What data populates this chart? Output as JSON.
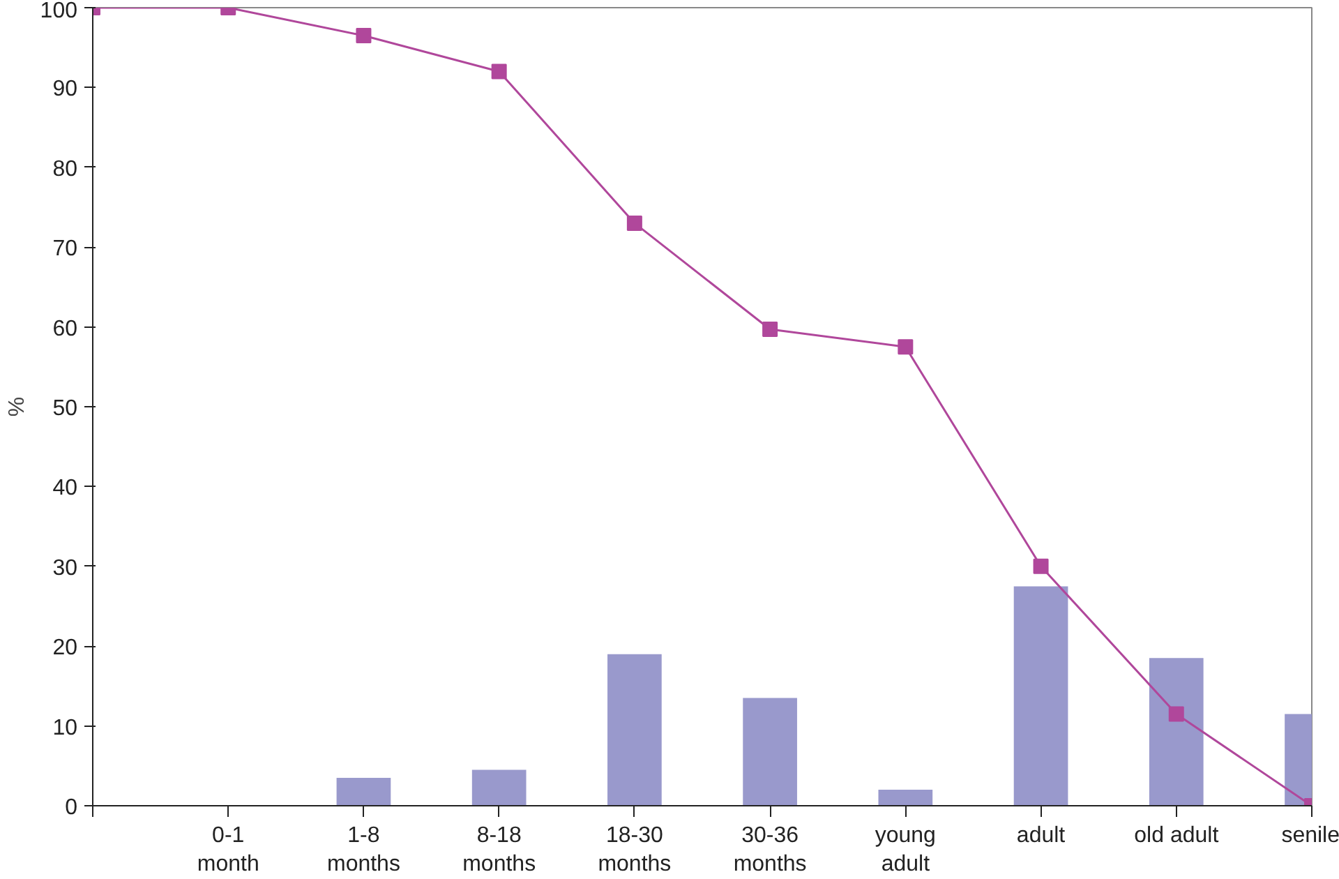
{
  "chart_data": {
    "type": "bar",
    "categories": [
      null,
      "0-1\nmonth",
      "1-8\nmonths",
      "8-18\nmonths",
      "18-30\nmonths",
      "30-36\nmonths",
      "young\nadult",
      "adult",
      "old adult",
      "senile"
    ],
    "ylabel": "%",
    "ylim": [
      0,
      100
    ],
    "yticks": [
      0,
      10,
      20,
      30,
      40,
      50,
      60,
      70,
      80,
      90,
      100
    ],
    "grid": false,
    "series": [
      {
        "color": "#9999cc",
        "values": [
          null,
          null,
          3.5,
          4.5,
          19,
          13.5,
          2,
          27.5,
          18.5,
          11.5
        ]
      },
      {
        "type": "line",
        "color": "#b0479b",
        "marker": "square",
        "line_style": "solid",
        "values": [
          100,
          100,
          96.5,
          92,
          73,
          59.7,
          57.5,
          30,
          11.5,
          0
        ]
      }
    ]
  }
}
